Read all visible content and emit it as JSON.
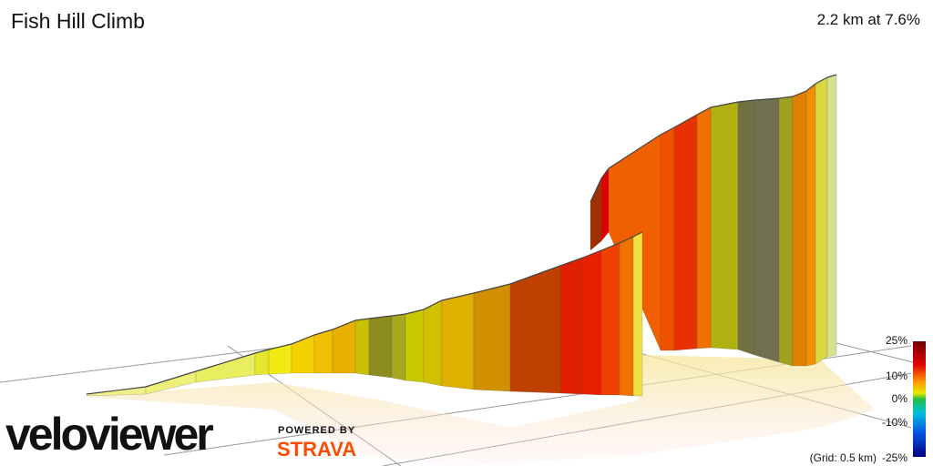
{
  "header": {
    "title": "Fish Hill Climb",
    "summary": "2.2 km at 7.6%"
  },
  "legend": {
    "labels": [
      "25%",
      "10%",
      "0%",
      "-10%",
      "-25%"
    ],
    "grid_note": "(Grid: 0.5 km)"
  },
  "branding": {
    "logo": "veloviewer",
    "powered_by": "POWERED BY",
    "partner": "STRAVA"
  }
}
